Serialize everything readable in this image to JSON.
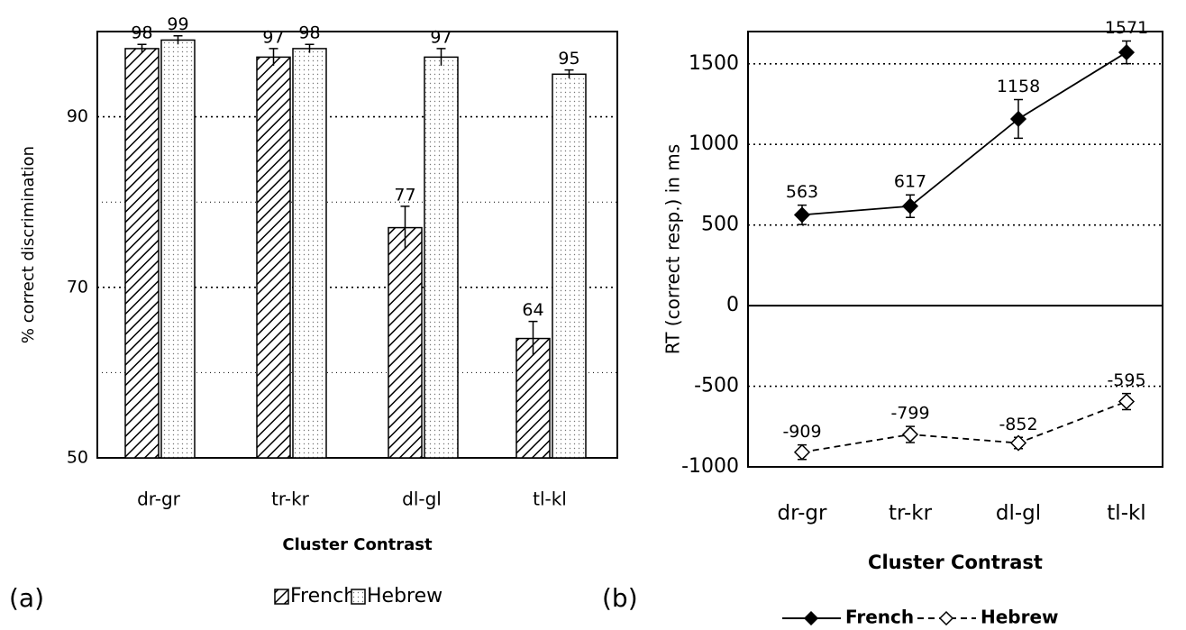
{
  "chart_data": [
    {
      "type": "bar",
      "panel_label": "(a)",
      "ylabel": "% correct discrimination",
      "xlabel": "Cluster Contrast",
      "categories": [
        "dr-gr",
        "tr-kr",
        "dl-gl",
        "tl-kl"
      ],
      "series": [
        {
          "name": "French",
          "color": "#000000",
          "pattern": "hatch",
          "values": [
            98,
            97,
            77,
            64
          ],
          "errors": [
            0.5,
            1,
            2.5,
            2
          ]
        },
        {
          "name": "Hebrew",
          "color": "#000000",
          "pattern": "dots",
          "values": [
            99,
            98,
            97,
            95
          ],
          "errors": [
            0.5,
            0.5,
            1,
            0.5
          ]
        }
      ],
      "ylim": [
        50,
        100
      ],
      "yticks": [
        50,
        70,
        90
      ],
      "grid": true,
      "minor_grid": [
        60,
        80,
        100
      ],
      "legend": "bottom"
    },
    {
      "type": "line",
      "panel_label": "(b)",
      "ylabel": "RT (correct resp.) in ms",
      "xlabel": "Cluster Contrast",
      "categories": [
        "dr-gr",
        "tr-kr",
        "dl-gl",
        "tl-kl"
      ],
      "series": [
        {
          "name": "French",
          "color": "#000000",
          "marker_fill": "#000000",
          "dashed": false,
          "values": [
            563,
            617,
            1158,
            1571
          ],
          "errors": [
            60,
            70,
            120,
            70
          ]
        },
        {
          "name": "Hebrew",
          "color": "#000000",
          "marker_fill": "#ffffff",
          "dashed": true,
          "values": [
            -909,
            -799,
            -852,
            -595
          ],
          "errors": [
            45,
            50,
            35,
            50
          ]
        }
      ],
      "ylim": [
        -1000,
        1700
      ],
      "yticks": [
        -1000,
        -500,
        0,
        500,
        1000,
        1500
      ],
      "grid": true,
      "legend": "bottom"
    }
  ]
}
